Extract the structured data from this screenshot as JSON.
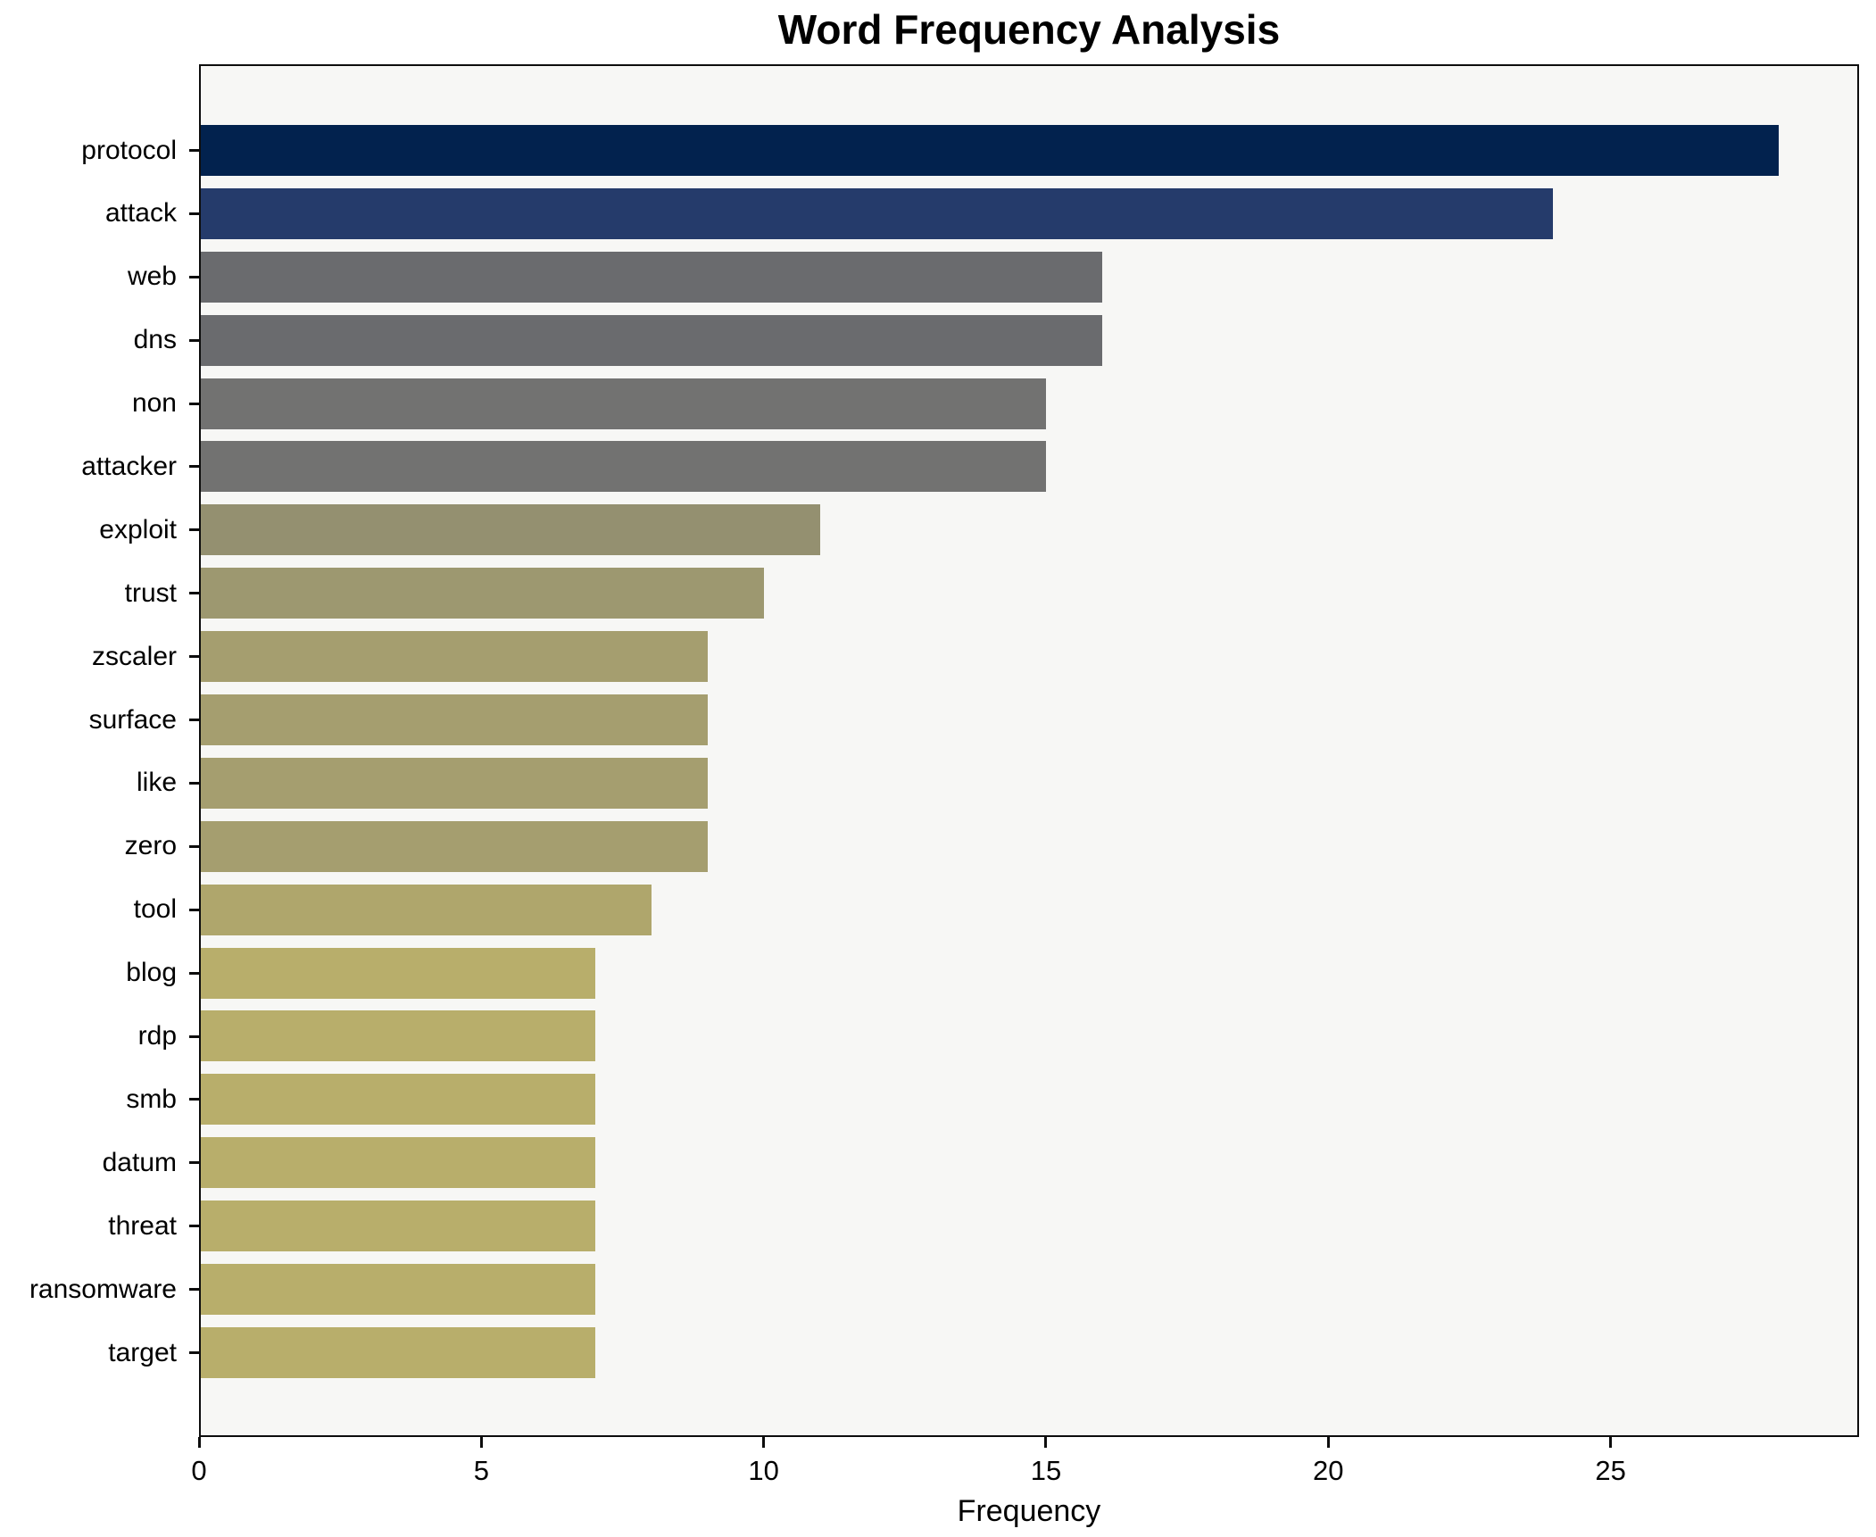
{
  "chart_data": {
    "type": "bar",
    "orientation": "horizontal",
    "title": "Word Frequency Analysis",
    "xlabel": "Frequency",
    "ylabel": "",
    "categories": [
      "protocol",
      "attack",
      "web",
      "dns",
      "non",
      "attacker",
      "exploit",
      "trust",
      "zscaler",
      "surface",
      "like",
      "zero",
      "tool",
      "blog",
      "rdp",
      "smb",
      "datum",
      "threat",
      "ransomware",
      "target"
    ],
    "values": [
      28,
      24,
      16,
      16,
      15,
      15,
      11,
      10,
      9,
      9,
      9,
      9,
      8,
      7,
      7,
      7,
      7,
      7,
      7,
      7
    ],
    "bar_colors": [
      "#02224E",
      "#253B6B",
      "#6A6B6E",
      "#6A6B6E",
      "#727271",
      "#727271",
      "#949070",
      "#9D9870",
      "#A59E6F",
      "#A59E6F",
      "#A59E6F",
      "#A59E6F",
      "#AFA66C",
      "#B8AE6B",
      "#B8AE6B",
      "#B8AE6B",
      "#B8AE6B",
      "#B8AE6B",
      "#B8AE6B",
      "#B8AE6B"
    ],
    "xlim": [
      0,
      29.4
    ],
    "xticks": [
      0,
      5,
      10,
      15,
      20,
      25
    ],
    "grid": false,
    "legend": false,
    "plot_background": "#F7F7F5",
    "figure_background": "#FFFFFF"
  }
}
